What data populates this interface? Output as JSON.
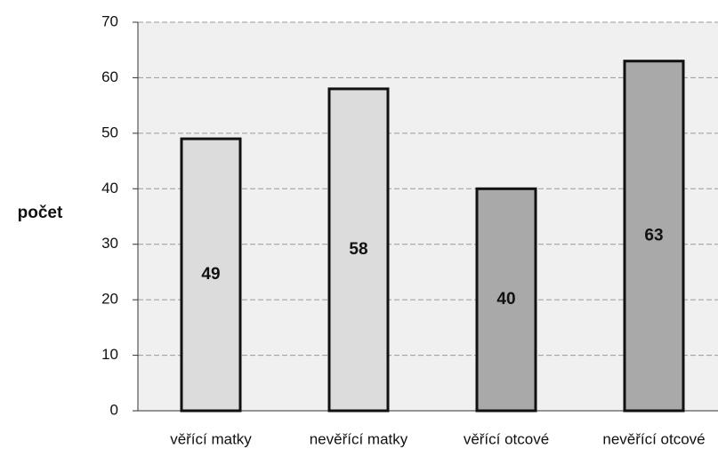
{
  "chart_data": {
    "type": "bar",
    "y_label": "počet",
    "categories": [
      "věřící matky",
      "nevěřící matky",
      "věřící otcové",
      "nevěřící otcové"
    ],
    "values": [
      49,
      58,
      40,
      63
    ],
    "colors": [
      "#dcdcdc",
      "#dcdcdc",
      "#a9a9a9",
      "#a9a9a9"
    ],
    "ylim": [
      0,
      70
    ],
    "yticks": [
      0,
      10,
      20,
      30,
      40,
      50,
      60,
      70
    ],
    "grid": true
  }
}
